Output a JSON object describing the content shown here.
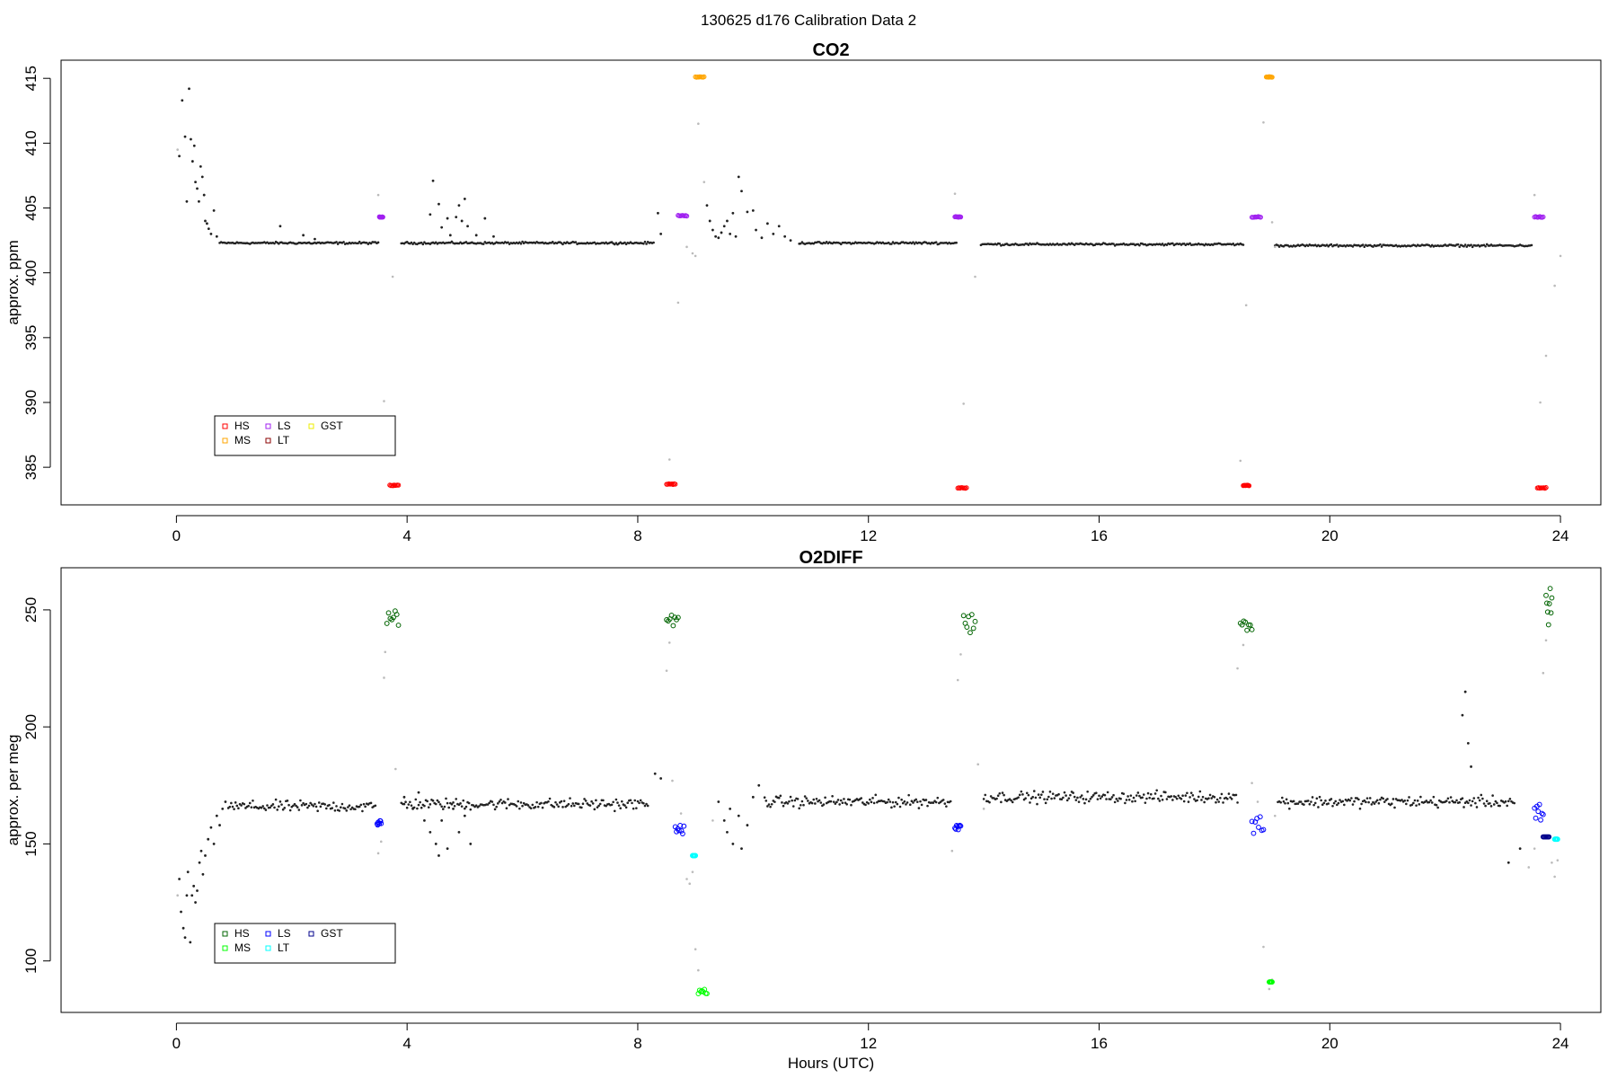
{
  "page": {
    "title": "130625   d176   Calibration Data 2"
  },
  "colors": {
    "sample": "#222222",
    "flagged": "#bbbbbb",
    "HS_co2": "#ff0000",
    "MS_co2": "#ffa500",
    "LS_co2": "#a020f0",
    "LT_co2": "#8b0000",
    "GST_co2": "#eeee00",
    "HS_o2": "#006400",
    "MS_o2": "#00ff00",
    "LS_o2": "#0000ff",
    "LT_o2": "#00ffff",
    "GST_o2": "#00008b"
  },
  "chart_data": [
    {
      "type": "scatter",
      "title": "CO2",
      "xlabel": "",
      "ylabel": "approx. ppm",
      "xlim": [
        -2,
        24.7
      ],
      "ylim": [
        382.1,
        416.4
      ],
      "x_ticks": [
        "0",
        "4",
        "8",
        "12",
        "16",
        "20",
        "24"
      ],
      "y_ticks": [
        "385",
        "390",
        "395",
        "400",
        "405",
        "410",
        "415"
      ],
      "grid": false,
      "legend_position": "bottom-left",
      "legend": [
        {
          "name": "HS",
          "color_key": "HS_co2"
        },
        {
          "name": "MS",
          "color_key": "MS_co2"
        },
        {
          "name": "LS",
          "color_key": "LS_co2"
        },
        {
          "name": "LT",
          "color_key": "LT_co2"
        },
        {
          "name": "GST",
          "color_key": "GST_co2"
        }
      ],
      "baseline_segments": [
        {
          "start": 0.75,
          "end": 3.5,
          "y": 402.3
        },
        {
          "start": 3.9,
          "end": 8.3,
          "y": 402.3
        },
        {
          "start": 10.8,
          "end": 13.55,
          "y": 402.3
        },
        {
          "start": 13.95,
          "end": 18.5,
          "y": 402.2
        },
        {
          "start": 19.05,
          "end": 23.5,
          "y": 402.1
        }
      ],
      "sample_points": [
        [
          0.05,
          409.0
        ],
        [
          0.1,
          413.3
        ],
        [
          0.15,
          410.5
        ],
        [
          0.18,
          405.5
        ],
        [
          0.22,
          414.2
        ],
        [
          0.25,
          410.3
        ],
        [
          0.28,
          408.6
        ],
        [
          0.31,
          409.8
        ],
        [
          0.33,
          407.0
        ],
        [
          0.36,
          406.5
        ],
        [
          0.39,
          405.5
        ],
        [
          0.42,
          408.2
        ],
        [
          0.45,
          407.4
        ],
        [
          0.48,
          406.0
        ],
        [
          0.5,
          404.0
        ],
        [
          0.53,
          403.8
        ],
        [
          0.56,
          403.4
        ],
        [
          0.6,
          403.0
        ],
        [
          0.65,
          404.8
        ],
        [
          0.7,
          402.8
        ],
        [
          1.8,
          403.6
        ],
        [
          2.2,
          402.9
        ],
        [
          2.4,
          402.6
        ],
        [
          4.4,
          404.5
        ],
        [
          4.45,
          407.1
        ],
        [
          4.55,
          405.3
        ],
        [
          4.6,
          403.5
        ],
        [
          4.7,
          404.2
        ],
        [
          4.75,
          402.9
        ],
        [
          4.85,
          404.3
        ],
        [
          4.9,
          405.2
        ],
        [
          4.95,
          404.0
        ],
        [
          5.0,
          405.7
        ],
        [
          5.05,
          403.6
        ],
        [
          5.2,
          402.9
        ],
        [
          5.35,
          404.2
        ],
        [
          5.5,
          402.8
        ],
        [
          8.35,
          404.6
        ],
        [
          8.4,
          403.0
        ],
        [
          9.2,
          405.2
        ],
        [
          9.25,
          404.0
        ],
        [
          9.3,
          403.3
        ],
        [
          9.35,
          402.8
        ],
        [
          9.4,
          402.7
        ],
        [
          9.45,
          403.1
        ],
        [
          9.5,
          403.6
        ],
        [
          9.55,
          404.0
        ],
        [
          9.6,
          403.0
        ],
        [
          9.65,
          404.6
        ],
        [
          9.7,
          402.8
        ],
        [
          9.75,
          407.4
        ],
        [
          9.8,
          406.3
        ],
        [
          9.9,
          404.7
        ],
        [
          10.0,
          404.8
        ],
        [
          10.05,
          403.3
        ],
        [
          10.15,
          402.7
        ],
        [
          10.25,
          403.8
        ],
        [
          10.35,
          403.0
        ],
        [
          10.45,
          403.6
        ],
        [
          10.55,
          402.8
        ],
        [
          10.65,
          402.5
        ]
      ],
      "flagged_points": [
        [
          0.02,
          409.5
        ],
        [
          3.5,
          406.0
        ],
        [
          3.6,
          390.1
        ],
        [
          3.75,
          399.7
        ],
        [
          8.55,
          385.6
        ],
        [
          8.7,
          397.7
        ],
        [
          8.85,
          402.0
        ],
        [
          8.95,
          401.5
        ],
        [
          9.0,
          401.3
        ],
        [
          9.05,
          411.5
        ],
        [
          9.15,
          407.0
        ],
        [
          13.5,
          406.1
        ],
        [
          13.65,
          389.9
        ],
        [
          13.85,
          399.7
        ],
        [
          18.45,
          385.5
        ],
        [
          18.55,
          397.5
        ],
        [
          18.85,
          411.6
        ],
        [
          19.0,
          403.9
        ],
        [
          19.05,
          402.0
        ],
        [
          23.55,
          406.0
        ],
        [
          23.65,
          390.0
        ],
        [
          23.75,
          393.6
        ],
        [
          23.9,
          399.0
        ],
        [
          24.0,
          401.3
        ]
      ],
      "calibration_groups": [
        {
          "name": "HS",
          "x_start": 3.7,
          "x_end": 3.85,
          "y": 383.6,
          "color_key": "HS_co2"
        },
        {
          "name": "LS",
          "x_start": 3.52,
          "x_end": 3.58,
          "y": 404.3,
          "color_key": "LS_co2"
        },
        {
          "name": "HS",
          "x_start": 8.5,
          "x_end": 8.65,
          "y": 383.7,
          "color_key": "HS_co2"
        },
        {
          "name": "LS",
          "x_start": 8.7,
          "x_end": 8.85,
          "y": 404.4,
          "color_key": "LS_co2"
        },
        {
          "name": "MS",
          "x_start": 9.0,
          "x_end": 9.15,
          "y": 415.1,
          "color_key": "MS_co2"
        },
        {
          "name": "HS",
          "x_start": 13.55,
          "x_end": 13.7,
          "y": 383.4,
          "color_key": "HS_co2"
        },
        {
          "name": "LS",
          "x_start": 13.5,
          "x_end": 13.6,
          "y": 404.3,
          "color_key": "LS_co2"
        },
        {
          "name": "HS",
          "x_start": 18.5,
          "x_end": 18.6,
          "y": 383.6,
          "color_key": "HS_co2"
        },
        {
          "name": "LS",
          "x_start": 18.65,
          "x_end": 18.8,
          "y": 404.3,
          "color_key": "LS_co2"
        },
        {
          "name": "MS",
          "x_start": 18.9,
          "x_end": 19.0,
          "y": 415.1,
          "color_key": "MS_co2"
        },
        {
          "name": "HS",
          "x_start": 23.6,
          "x_end": 23.75,
          "y": 383.4,
          "color_key": "HS_co2"
        },
        {
          "name": "LS",
          "x_start": 23.55,
          "x_end": 23.7,
          "y": 404.3,
          "color_key": "LS_co2"
        }
      ]
    },
    {
      "type": "scatter",
      "title": "O2DIFF",
      "xlabel": "Hours (UTC)",
      "ylabel": "approx. per meg",
      "xlim": [
        -2,
        24.7
      ],
      "ylim": [
        78,
        268
      ],
      "x_ticks": [
        "0",
        "4",
        "8",
        "12",
        "16",
        "20",
        "24"
      ],
      "y_ticks": [
        "100",
        "150",
        "200",
        "250"
      ],
      "grid": false,
      "legend_position": "bottom-left",
      "legend": [
        {
          "name": "HS",
          "color_key": "HS_o2"
        },
        {
          "name": "MS",
          "color_key": "MS_o2"
        },
        {
          "name": "LS",
          "color_key": "LS_o2"
        },
        {
          "name": "LT",
          "color_key": "LT_o2"
        },
        {
          "name": "GST",
          "color_key": "GST_o2"
        }
      ],
      "baseline_segments": [
        {
          "start": 0.9,
          "end": 3.45,
          "y": 166
        },
        {
          "start": 3.9,
          "end": 8.2,
          "y": 167
        },
        {
          "start": 10.2,
          "end": 13.45,
          "y": 168
        },
        {
          "start": 14.0,
          "end": 18.4,
          "y": 170
        },
        {
          "start": 19.1,
          "end": 23.2,
          "y": 168
        }
      ],
      "sample_points": [
        [
          0.05,
          135
        ],
        [
          0.08,
          121
        ],
        [
          0.12,
          114
        ],
        [
          0.15,
          110
        ],
        [
          0.18,
          128
        ],
        [
          0.2,
          138
        ],
        [
          0.24,
          108
        ],
        [
          0.27,
          128
        ],
        [
          0.3,
          132
        ],
        [
          0.33,
          125
        ],
        [
          0.36,
          130
        ],
        [
          0.4,
          142
        ],
        [
          0.43,
          147
        ],
        [
          0.46,
          137
        ],
        [
          0.5,
          145
        ],
        [
          0.55,
          152
        ],
        [
          0.6,
          157
        ],
        [
          0.65,
          150
        ],
        [
          0.7,
          162
        ],
        [
          0.75,
          158
        ],
        [
          0.8,
          165
        ],
        [
          0.85,
          168
        ],
        [
          3.95,
          170
        ],
        [
          4.1,
          165
        ],
        [
          4.2,
          172
        ],
        [
          4.3,
          160
        ],
        [
          4.4,
          155
        ],
        [
          4.5,
          150
        ],
        [
          4.55,
          145
        ],
        [
          4.6,
          160
        ],
        [
          4.7,
          148
        ],
        [
          4.8,
          165
        ],
        [
          4.9,
          155
        ],
        [
          5.0,
          162
        ],
        [
          5.1,
          150
        ],
        [
          8.3,
          180
        ],
        [
          8.4,
          178
        ],
        [
          9.4,
          168
        ],
        [
          9.5,
          160
        ],
        [
          9.55,
          155
        ],
        [
          9.6,
          165
        ],
        [
          9.65,
          150
        ],
        [
          9.75,
          162
        ],
        [
          9.8,
          148
        ],
        [
          9.9,
          158
        ],
        [
          10.0,
          170
        ],
        [
          10.1,
          175
        ],
        [
          22.3,
          205
        ],
        [
          22.35,
          215
        ],
        [
          22.4,
          193
        ],
        [
          22.45,
          183
        ],
        [
          23.1,
          142
        ],
        [
          23.3,
          148
        ]
      ],
      "flagged_points": [
        [
          0.02,
          128
        ],
        [
          3.5,
          146
        ],
        [
          3.55,
          151
        ],
        [
          3.6,
          221
        ],
        [
          3.62,
          232
        ],
        [
          3.8,
          182
        ],
        [
          8.5,
          224
        ],
        [
          8.55,
          236
        ],
        [
          8.6,
          177
        ],
        [
          8.75,
          163
        ],
        [
          8.85,
          135
        ],
        [
          8.9,
          133
        ],
        [
          8.95,
          138
        ],
        [
          9.0,
          105
        ],
        [
          9.05,
          96
        ],
        [
          9.1,
          88
        ],
        [
          9.3,
          160
        ],
        [
          13.45,
          147
        ],
        [
          13.55,
          220
        ],
        [
          13.6,
          231
        ],
        [
          13.9,
          184
        ],
        [
          14.0,
          165
        ],
        [
          18.4,
          225
        ],
        [
          18.5,
          235
        ],
        [
          18.65,
          176
        ],
        [
          18.75,
          168
        ],
        [
          18.85,
          106
        ],
        [
          18.95,
          88
        ],
        [
          19.0,
          92
        ],
        [
          19.05,
          162
        ],
        [
          23.45,
          140
        ],
        [
          23.55,
          148
        ],
        [
          23.7,
          223
        ],
        [
          23.75,
          237
        ],
        [
          23.85,
          142
        ],
        [
          23.9,
          136
        ],
        [
          23.95,
          143
        ]
      ],
      "calibration_groups": [
        {
          "name": "HS",
          "x_start": 3.65,
          "x_end": 3.85,
          "y_min": 243,
          "y_max": 250,
          "color_key": "HS_o2"
        },
        {
          "name": "LS",
          "x_start": 3.48,
          "x_end": 3.55,
          "y_min": 157,
          "y_max": 160,
          "color_key": "LS_o2"
        },
        {
          "name": "HS",
          "x_start": 8.5,
          "x_end": 8.7,
          "y_min": 243,
          "y_max": 248,
          "color_key": "HS_o2"
        },
        {
          "name": "LS",
          "x_start": 8.65,
          "x_end": 8.8,
          "y_min": 154,
          "y_max": 158,
          "color_key": "LS_o2"
        },
        {
          "name": "LT",
          "x_start": 8.95,
          "x_end": 9.0,
          "y_min": 145,
          "y_max": 145,
          "color_key": "LT_o2"
        },
        {
          "name": "MS",
          "x_start": 9.05,
          "x_end": 9.2,
          "y_min": 86,
          "y_max": 88,
          "color_key": "MS_o2"
        },
        {
          "name": "HS",
          "x_start": 13.65,
          "x_end": 13.85,
          "y_min": 240,
          "y_max": 248,
          "color_key": "HS_o2"
        },
        {
          "name": "LS",
          "x_start": 13.5,
          "x_end": 13.6,
          "y_min": 156,
          "y_max": 158,
          "color_key": "LS_o2"
        },
        {
          "name": "HS",
          "x_start": 18.45,
          "x_end": 18.65,
          "y_min": 241,
          "y_max": 246,
          "color_key": "HS_o2"
        },
        {
          "name": "LS",
          "x_start": 18.65,
          "x_end": 18.85,
          "y_min": 154,
          "y_max": 164,
          "color_key": "LS_o2"
        },
        {
          "name": "MS",
          "x_start": 18.95,
          "x_end": 19.0,
          "y_min": 91,
          "y_max": 91,
          "color_key": "MS_o2"
        },
        {
          "name": "HS",
          "x_start": 23.75,
          "x_end": 23.85,
          "y_min": 242,
          "y_max": 260,
          "color_key": "HS_o2"
        },
        {
          "name": "LS",
          "x_start": 23.55,
          "x_end": 23.7,
          "y_min": 160,
          "y_max": 168,
          "color_key": "LS_o2"
        },
        {
          "name": "GST",
          "x_start": 23.7,
          "x_end": 23.8,
          "y_min": 153,
          "y_max": 153,
          "color_key": "GST_o2"
        },
        {
          "name": "LT",
          "x_start": 23.9,
          "x_end": 23.95,
          "y_min": 152,
          "y_max": 152,
          "color_key": "LT_o2"
        }
      ]
    }
  ]
}
